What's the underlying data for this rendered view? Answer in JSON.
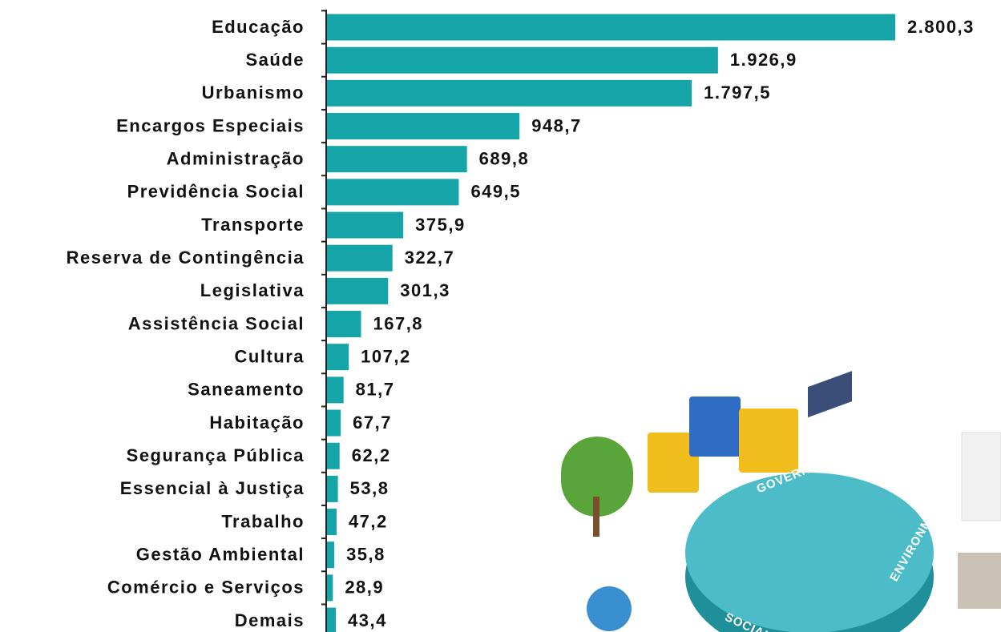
{
  "chart_data": {
    "type": "bar",
    "orientation": "horizontal",
    "color": "#15a5a8",
    "categories": [
      "Educação",
      "Saúde",
      "Urbanismo",
      "Encargos Especiais",
      "Administração",
      "Previdência Social",
      "Transporte",
      "Reserva de Contingência",
      "Legislativa",
      "Assistência Social",
      "Cultura",
      "Saneamento",
      "Habitação",
      "Segurança Pública",
      "Essencial à Justiça",
      "Trabalho",
      "Gestão Ambiental",
      "Comércio e Serviços",
      "Demais"
    ],
    "values": [
      2800.3,
      1926.9,
      1797.5,
      948.7,
      689.8,
      649.5,
      375.9,
      322.7,
      301.3,
      167.8,
      107.2,
      81.7,
      67.7,
      62.2,
      53.8,
      47.2,
      35.8,
      28.9,
      43.4
    ],
    "value_labels": [
      "2.800,3",
      "1.926,9",
      "1.797,5",
      "948,7",
      "689,8",
      "649,5",
      "375,9",
      "322,7",
      "301,3",
      "167,8",
      "107,2",
      "81,7",
      "67,7",
      "62,2",
      "53,8",
      "47,2",
      "35,8",
      "28,9",
      "43,4"
    ]
  },
  "illustration_labels": [
    "GOVERNANCE",
    "ENVIRONMENT",
    "SOCIAL"
  ]
}
